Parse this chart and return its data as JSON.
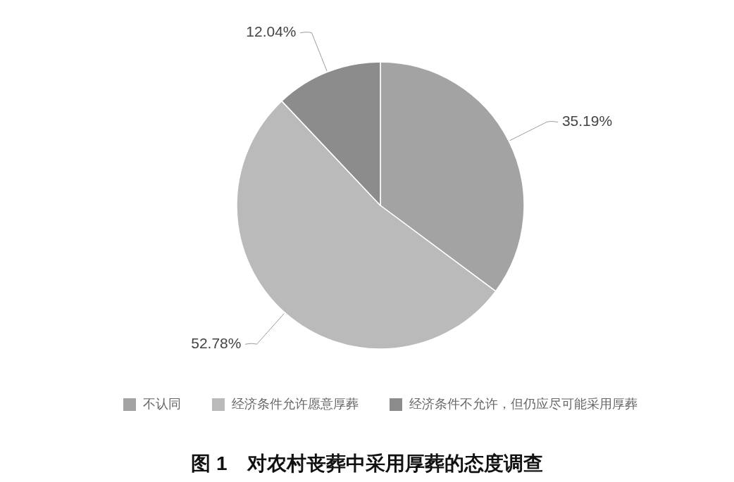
{
  "chart_data": {
    "type": "pie",
    "title": "图 1　对农村丧葬中采用厚葬的态度调查",
    "categories": [
      "不认同",
      "经济条件允许愿意厚葬",
      "经济条件不允许，但仍应尽可能采用厚葬"
    ],
    "values": [
      35.19,
      52.78,
      12.04
    ],
    "colors": [
      "#a3a3a3",
      "#bababa",
      "#8c8c8c"
    ],
    "value_labels": [
      "35.19%",
      "52.78%",
      "12.04%"
    ],
    "legend": "bottom"
  }
}
